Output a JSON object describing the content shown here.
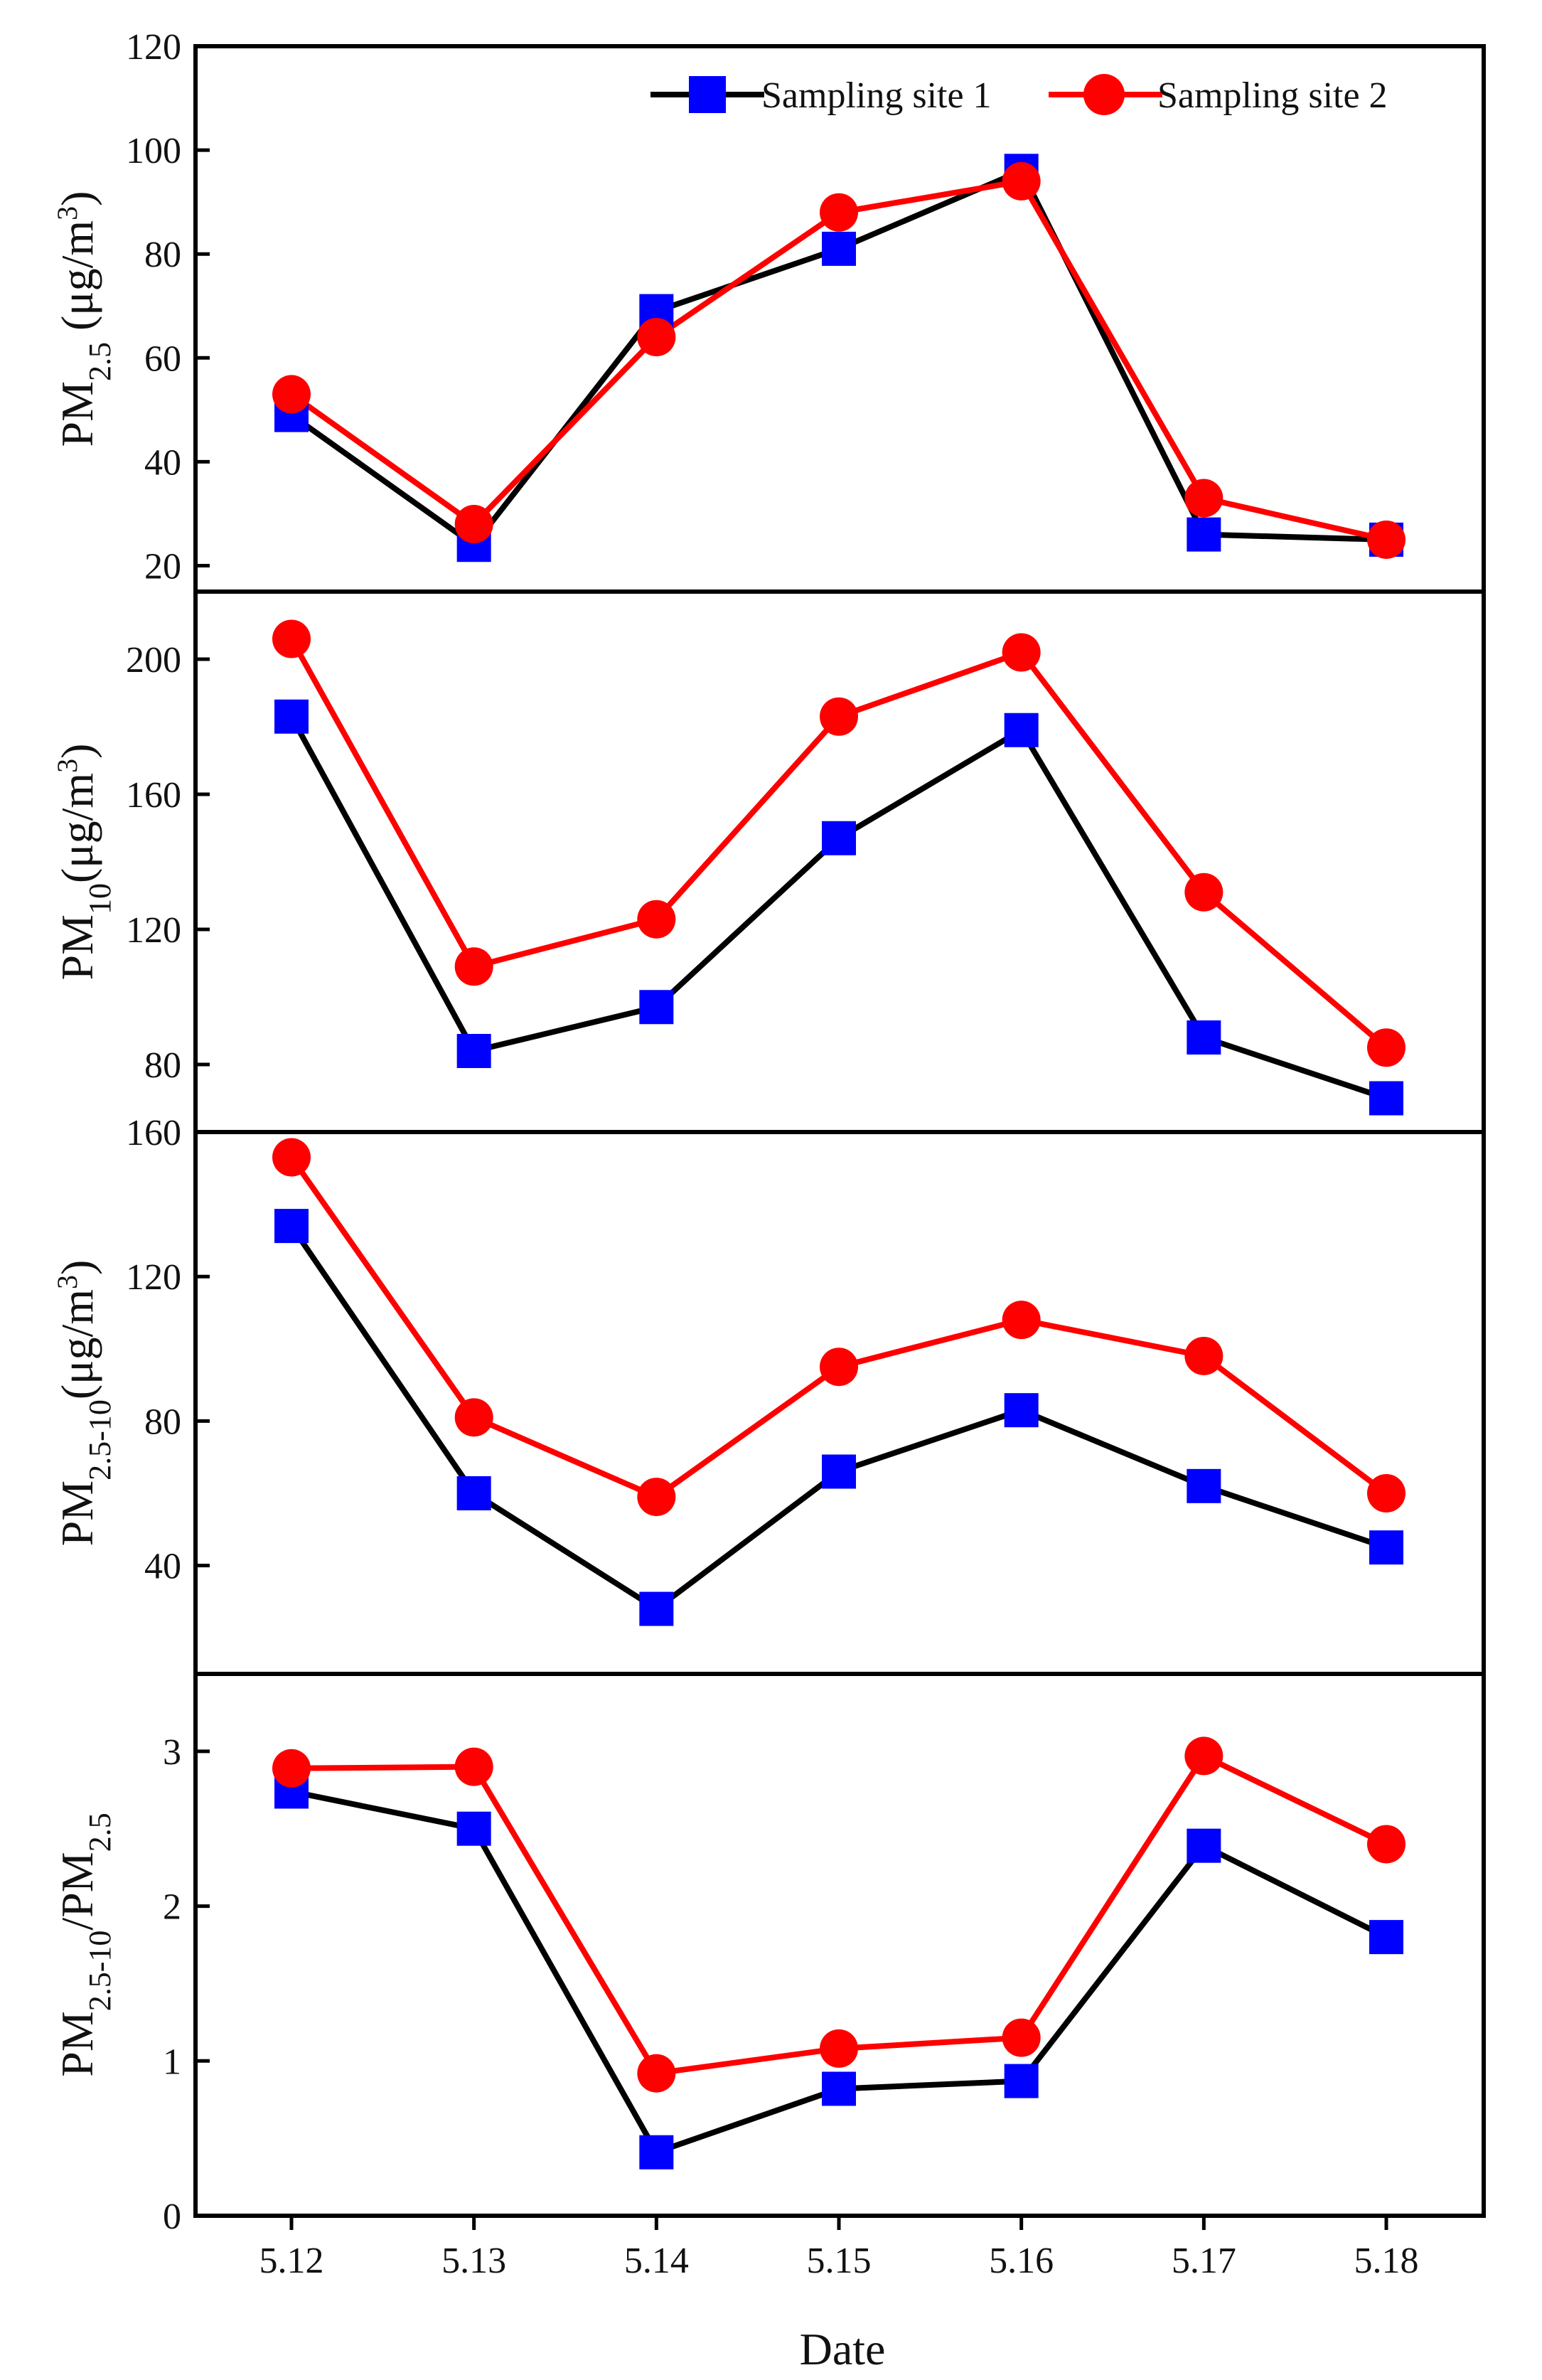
{
  "chart_data": {
    "type": "line",
    "xlabel": "Date",
    "categories": [
      "5.12",
      "5.13",
      "5.14",
      "5.15",
      "5.16",
      "5.17",
      "5.18"
    ],
    "legend": [
      {
        "name": "Sampling site 1",
        "color": "#0000ff",
        "line_color": "#000000",
        "marker": "square"
      },
      {
        "name": "Sampling site 2",
        "color": "#ff0000",
        "line_color": "#ff0000",
        "marker": "circle"
      }
    ],
    "legend_position": "top-right",
    "panels": [
      {
        "id": "pm25",
        "ylabel_main": "PM",
        "ylabel_sub": "2.5",
        "ylabel_unit": "  (μg/m",
        "ylabel_sup": "3",
        "ylabel_close": ")",
        "ylim": [
          15,
          120
        ],
        "yticks": [
          20,
          40,
          60,
          80,
          100,
          120
        ],
        "series": [
          {
            "name": "Sampling site 1",
            "values": [
              49,
              24,
              69,
              81,
              96,
              26,
              25
            ]
          },
          {
            "name": "Sampling site 2",
            "values": [
              53,
              28,
              64,
              88,
              94,
              33,
              25
            ]
          }
        ]
      },
      {
        "id": "pm10",
        "ylabel_main": "PM",
        "ylabel_sub": "10",
        "ylabel_unit": "(μg/m",
        "ylabel_sup": "3",
        "ylabel_close": ")",
        "ylim": [
          60,
          220
        ],
        "yticks": [
          80,
          120,
          160,
          200
        ],
        "series": [
          {
            "name": "Sampling site 1",
            "values": [
              183,
              84,
              97,
              147,
              179,
              88,
              70
            ]
          },
          {
            "name": "Sampling site 2",
            "values": [
              206,
              109,
              123,
              183,
              202,
              131,
              85
            ]
          }
        ]
      },
      {
        "id": "pm25-10",
        "ylabel_main": "PM",
        "ylabel_sub": "2.5-10",
        "ylabel_unit": "(μg/m",
        "ylabel_sup": "3",
        "ylabel_close": ")",
        "ylim": [
          10,
          160
        ],
        "yticks": [
          40,
          80,
          120,
          160
        ],
        "series": [
          {
            "name": "Sampling site 1",
            "values": [
              134,
              60,
              28,
              66,
              83,
              62,
              45
            ]
          },
          {
            "name": "Sampling site 2",
            "values": [
              153,
              81,
              59,
              95,
              108,
              98,
              60
            ]
          }
        ]
      },
      {
        "id": "ratio",
        "ylabel_main": "PM",
        "ylabel_sub": "2.5-10",
        "ylabel_mid": "/PM",
        "ylabel_sub2": "2.5",
        "ylim": [
          0,
          3.5
        ],
        "yticks": [
          0,
          1,
          2,
          3
        ],
        "series": [
          {
            "name": "Sampling site 1",
            "values": [
              2.74,
              2.5,
              0.41,
              0.82,
              0.87,
              2.39,
              1.8
            ]
          },
          {
            "name": "Sampling site 2",
            "values": [
              2.89,
              2.9,
              0.92,
              1.08,
              1.15,
              2.97,
              2.4
            ]
          }
        ]
      }
    ]
  }
}
